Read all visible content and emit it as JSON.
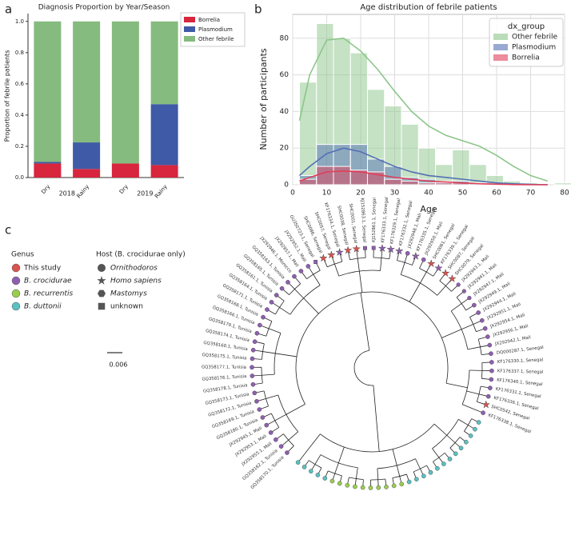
{
  "panel_labels": [
    "a",
    "b",
    "c"
  ],
  "chart_data": [
    {
      "type": "bar",
      "stacked": true,
      "title": "Diagnosis Proportion by Year/Season",
      "ylabel": "Proportion of febrile patients",
      "categories": [
        "Dry",
        "Rainy",
        "Dry",
        "Rainy"
      ],
      "groups": [
        "2018",
        "2019"
      ],
      "series": [
        {
          "name": "Borrelia",
          "color": "#d7263d",
          "values": [
            0.09,
            0.055,
            0.09,
            0.08
          ]
        },
        {
          "name": "Plasmodium",
          "color": "#3f5aa6",
          "values": [
            0.01,
            0.17,
            0.0,
            0.39
          ]
        },
        {
          "name": "Other febrile",
          "color": "#85bb7f",
          "values": [
            0.9,
            0.775,
            0.91,
            0.53
          ]
        }
      ],
      "ylim": [
        0,
        1.05
      ],
      "yticks": [
        {
          "value": 0,
          "label": "0.0"
        },
        0.2,
        0.4,
        0.6,
        0.8,
        {
          "value": 1,
          "label": "1.0"
        }
      ]
    },
    {
      "type": "histogram",
      "title": "Age distribution of febrile patients",
      "xlabel": "Age",
      "ylabel": "Number of participants",
      "legend_title": "dx_group",
      "bins": [
        2,
        7,
        12,
        17,
        22,
        27,
        32,
        37,
        42,
        47,
        52,
        57,
        62,
        67,
        72,
        77,
        82
      ],
      "kde_x": [
        2,
        5,
        10,
        15,
        20,
        25,
        30,
        35,
        40,
        45,
        50,
        55,
        60,
        65,
        70,
        75
      ],
      "series": [
        {
          "name": "Other febrile",
          "color": "#8cc68a",
          "values": [
            56,
            88,
            80,
            72,
            52,
            43,
            33,
            20,
            11,
            19,
            11,
            5,
            2,
            1,
            0,
            1
          ],
          "kde": [
            35,
            60,
            79,
            80,
            73,
            63,
            51,
            40,
            32,
            27,
            24,
            21,
            16,
            10,
            5,
            2
          ]
        },
        {
          "name": "Plasmodium",
          "color": "#5470b5",
          "values": [
            5,
            22,
            22,
            22,
            14,
            10,
            4,
            3,
            2,
            2,
            1,
            0,
            0,
            0,
            0,
            0
          ],
          "kde": [
            5,
            10,
            17,
            20,
            18,
            14,
            10,
            7,
            5,
            4,
            3,
            2,
            1,
            0.5,
            0.2,
            0
          ]
        },
        {
          "name": "Borrelia",
          "color": "#e0405a",
          "values": [
            3,
            10,
            10,
            8,
            7,
            3,
            2,
            1,
            1,
            1,
            0,
            0,
            0,
            0,
            0,
            0
          ],
          "kde": [
            2,
            4,
            7,
            7.5,
            7,
            5.5,
            4,
            3,
            2,
            1.5,
            1,
            0.5,
            0.3,
            0.1,
            0,
            0
          ]
        }
      ],
      "xlim": [
        0,
        80
      ],
      "xticks": [
        0,
        10,
        20,
        30,
        40,
        50,
        60,
        70,
        80
      ],
      "ylim": [
        0,
        93
      ],
      "yticks": [
        0,
        20,
        40,
        60,
        80
      ],
      "grid": true
    }
  ],
  "tree": {
    "genus_legend": {
      "title": "Genus",
      "items": [
        {
          "label": "This study",
          "color": "#d9534f"
        },
        {
          "label": "B. crocidurae",
          "color": "#8e5fb0"
        },
        {
          "label": "B. recurrentis",
          "color": "#9acd4f"
        },
        {
          "label": "B. duttonii",
          "color": "#5bc0c0"
        }
      ]
    },
    "host_legend": {
      "title": "Host (B. crocidurae only)",
      "items": [
        "Ornithodoros",
        "Homo sapiens",
        "Mastomys",
        "unknown"
      ]
    },
    "scale": 0.006,
    "tips": [
      [
        "GQ358170.1, Tunisia",
        1,
        0
      ],
      [
        "GQ358162.1, Tunisia",
        1,
        0
      ],
      [
        "JX292955.1, Mali",
        1,
        0
      ],
      [
        "JX292953.1, Mali",
        1,
        0
      ],
      [
        "JX292945.1, Mali",
        1,
        0
      ],
      [
        "GQ358180.1, Tunisia",
        1,
        0
      ],
      [
        "GQ358169.1, Tunisia",
        1,
        0
      ],
      [
        "GQ358172.1, Tunisia",
        1,
        0
      ],
      [
        "GQ358173.1, Tunisia",
        1,
        0
      ],
      [
        "GQ358178.1, Tunisia",
        1,
        0
      ],
      [
        "GQ358176.1, Tunisia",
        1,
        0
      ],
      [
        "GQ358177.1, Tunisia",
        1,
        0
      ],
      [
        "GQ358175.1, Tunisia",
        1,
        0
      ],
      [
        "GQ358160.1, Tunisia",
        1,
        0
      ],
      [
        "GQ358174.1, Tunisia",
        1,
        0
      ],
      [
        "GQ358179.1, Tunisia",
        1,
        0
      ],
      [
        "GQ358166.1, Tunisia",
        1,
        0
      ],
      [
        "GQ358168.1, Tunisia",
        1,
        0
      ],
      [
        "GQ358171.1, Tunisia",
        1,
        0
      ],
      [
        "GQ358164.1, Tunisia",
        1,
        0
      ],
      [
        "GQ358161.1, Tunisia",
        1,
        0
      ],
      [
        "GQ358165.1, Tunisia",
        1,
        0
      ],
      [
        "GQ358163.1, Tunisia",
        1,
        0
      ],
      [
        "JX292946.1, Morocco",
        1,
        0
      ],
      [
        "JX292957.1, Mali",
        1,
        0
      ],
      [
        "JX292952.1, Mali",
        1,
        0
      ],
      [
        "GU350723.1, Senegal",
        1,
        3
      ],
      [
        "SHC0086, Senegal",
        0,
        1
      ],
      [
        "SHC0057, Senegal",
        0,
        1
      ],
      [
        "KF176334.1, Senegal",
        1,
        1
      ],
      [
        "SHC0038, Senegal",
        0,
        1
      ],
      [
        "SHC0001, Senegal",
        0,
        1
      ],
      [
        "KJ152863.1, Senegal",
        1,
        3
      ],
      [
        "KJ152861.1, Senegal",
        1,
        3
      ],
      [
        "KF176333.1, Senegal",
        1,
        1
      ],
      [
        "KF176329.1, Senegal",
        1,
        1
      ],
      [
        "KF176332.1, Senegal",
        1,
        1
      ],
      [
        "JX292948.1, Mali",
        1,
        0
      ],
      [
        "KF176335.1, Senegal",
        1,
        1
      ],
      [
        "JX292950.1, Mali",
        1,
        0
      ],
      [
        "SHC0061, Senegal",
        0,
        1
      ],
      [
        "KF176339.1, Senegal",
        1,
        1
      ],
      [
        "SHC0087, Senegal",
        0,
        1
      ],
      [
        "SHC0079, Senegal",
        0,
        1
      ],
      [
        "JX292943.1, Mali",
        1,
        2
      ],
      [
        "JX292941.1, Mali",
        1,
        2
      ],
      [
        "JX292947.1, Mali",
        1,
        2
      ],
      [
        "JX292949.1, Mali",
        1,
        0
      ],
      [
        "JX292944.1, Mali",
        1,
        0
      ],
      [
        "JX292951.1, Mali",
        1,
        0
      ],
      [
        "JX292954.1, Mali",
        1,
        0
      ],
      [
        "JX292956.1, Mali",
        1,
        0
      ],
      [
        "JX292942.1, Mali",
        1,
        0
      ],
      [
        "DQ000287.1, Senegal",
        1,
        0
      ],
      [
        "KF176330.1, Senegal",
        1,
        0
      ],
      [
        "KF176337.1, Senegal",
        1,
        0
      ],
      [
        "KF176340.1, Senegal",
        1,
        0
      ],
      [
        "KF176331.1, Senegal",
        1,
        0
      ],
      [
        "KF176336.1, Senegal",
        1,
        0
      ],
      [
        "SHC0542, Senegal",
        0,
        1
      ],
      [
        "KF176338.1, Senegal",
        1,
        0
      ],
      [
        null,
        3
      ],
      [
        null,
        3
      ],
      [
        null,
        3
      ],
      [
        null,
        3
      ],
      [
        null,
        3
      ],
      [
        null,
        3
      ],
      [
        null,
        3
      ],
      [
        null,
        3
      ],
      [
        null,
        3
      ],
      [
        null,
        3
      ],
      [
        null,
        3
      ],
      [
        null,
        3
      ],
      [
        null,
        3
      ],
      [
        null,
        2
      ],
      [
        null,
        2
      ],
      [
        null,
        2
      ],
      [
        null,
        2
      ],
      [
        null,
        2
      ],
      [
        null,
        2
      ],
      [
        null,
        2
      ],
      [
        null,
        2
      ],
      [
        null,
        2
      ],
      [
        null,
        2
      ],
      [
        null,
        3
      ],
      [
        null,
        3
      ],
      [
        null,
        3
      ],
      [
        null,
        3
      ],
      [
        null,
        3
      ]
    ]
  }
}
